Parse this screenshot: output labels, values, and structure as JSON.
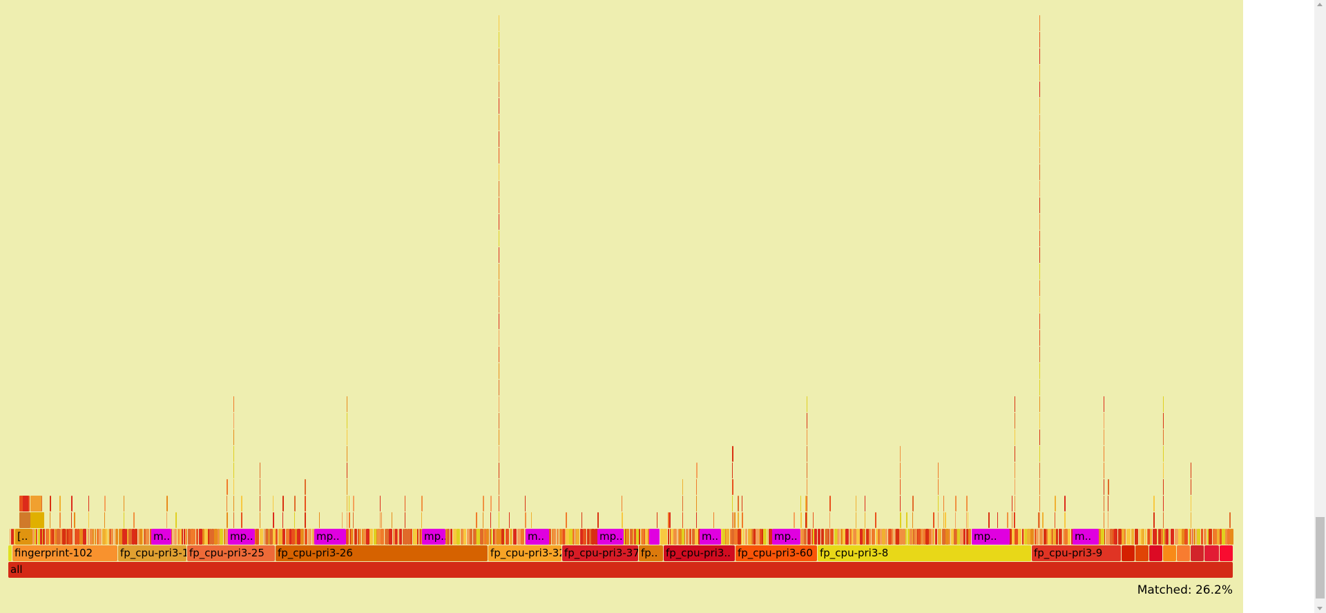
{
  "flamegraph": {
    "root": {
      "label": "all",
      "color": "#d42a16"
    },
    "level1": [
      {
        "label": "",
        "color": "#e0e020"
      },
      {
        "label": "fingerprint-102",
        "color": "#f8922e"
      },
      {
        "label": "fp_cpu-pri3-1",
        "color": "#e0a030"
      },
      {
        "label": "fp_cpu-pri3-25",
        "color": "#ee6a38"
      },
      {
        "label": "fp_cpu-pri3-26",
        "color": "#d66200"
      },
      {
        "label": "fp_cpu-pri3-32",
        "color": "#f8a426"
      },
      {
        "label": "fp_cpu-pri3-37",
        "color": "#d81c26"
      },
      {
        "label": "fp..",
        "color": "#dc7a0c"
      },
      {
        "label": "fp_cpu-pri3..",
        "color": "#d00c20"
      },
      {
        "label": "fp_cpu-pri3-60",
        "color": "#f85408"
      },
      {
        "label": "fp_cpu-pri3-8",
        "color": "#e8d818"
      },
      {
        "label": "fp_cpu-pri3-9",
        "color": "#e03424"
      },
      {
        "label": "",
        "color": "#d42000"
      },
      {
        "label": "",
        "color": "#e04406"
      },
      {
        "label": "",
        "color": "#dc0a24"
      },
      {
        "label": "",
        "color": "#f88a18"
      },
      {
        "label": "",
        "color": "#f87c30"
      },
      {
        "label": "",
        "color": "#d2242a"
      },
      {
        "label": "",
        "color": "#e21c34"
      },
      {
        "label": "",
        "color": "#f80c30"
      }
    ],
    "level2": [
      {
        "label": "[..",
        "color": "#e09410"
      },
      {
        "label": "m..",
        "color": "#e000e0"
      },
      {
        "label": "mp..",
        "color": "#e000e0"
      },
      {
        "label": "mp..",
        "color": "#e000e0"
      },
      {
        "label": "m..",
        "color": "#e000e0"
      },
      {
        "label": "mp..",
        "color": "#e000e0"
      },
      {
        "label": "",
        "color": "#e000e0"
      },
      {
        "label": "m..",
        "color": "#e000e0"
      },
      {
        "label": "mp..",
        "color": "#e000e0"
      },
      {
        "label": "mp..",
        "color": "#e000e0"
      },
      {
        "label": "m..",
        "color": "#e000e0"
      }
    ],
    "background_color": "#eeeeb0"
  },
  "status": {
    "matched": "Matched: 26.2%"
  }
}
